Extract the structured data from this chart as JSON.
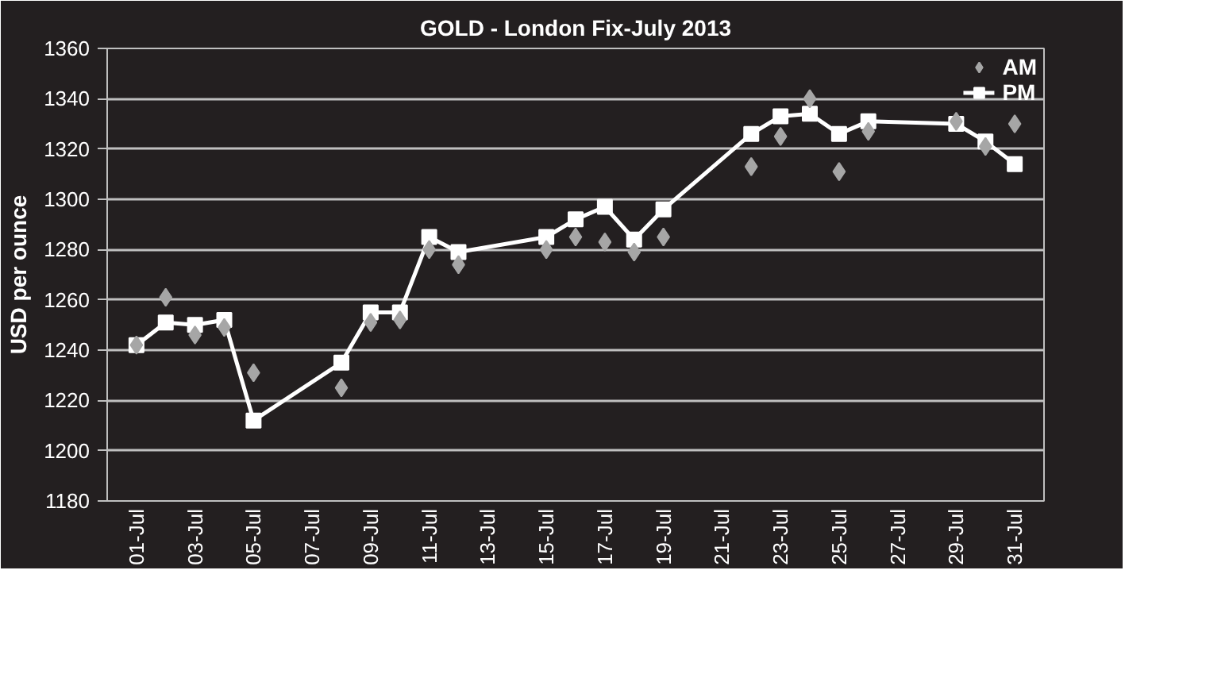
{
  "chart_data": {
    "type": "line",
    "title": "GOLD - London Fix-July 2013",
    "ylabel": "USD per ounce",
    "x": [
      "2013-07-01",
      "2013-07-02",
      "2013-07-03",
      "2013-07-04",
      "2013-07-05",
      "2013-07-08",
      "2013-07-09",
      "2013-07-10",
      "2013-07-11",
      "2013-07-12",
      "2013-07-15",
      "2013-07-16",
      "2013-07-17",
      "2013-07-18",
      "2013-07-19",
      "2013-07-22",
      "2013-07-23",
      "2013-07-24",
      "2013-07-25",
      "2013-07-26",
      "2013-07-29",
      "2013-07-30",
      "2013-07-31"
    ],
    "series": [
      {
        "name": "AM",
        "type": "scatter",
        "marker": "diamond",
        "color": "#a6a6a6",
        "values": [
          1242,
          1261,
          1246,
          1249,
          1231,
          1225,
          1251,
          1252,
          1280,
          1274,
          1280,
          1285,
          1283,
          1279,
          1285,
          1313,
          1325,
          1340,
          1311,
          1327,
          1331,
          1321,
          1330
        ]
      },
      {
        "name": "PM",
        "marker": "square",
        "color": "#ffffff",
        "values": [
          1242,
          1251,
          1250,
          1252,
          1212,
          1235,
          1255,
          1255,
          1285,
          1279,
          1285,
          1292,
          1297,
          1284,
          1296,
          1326,
          1333,
          1334,
          1326,
          1331,
          1330,
          1323,
          1314
        ]
      }
    ],
    "xlim": [
      "2013-06-30",
      "2013-08-01"
    ],
    "xticks": [
      {
        "value": "2013-07-01",
        "label": "01-Jul"
      },
      {
        "value": "2013-07-03",
        "label": "03-Jul"
      },
      {
        "value": "2013-07-05",
        "label": "05-Jul"
      },
      {
        "value": "2013-07-07",
        "label": "07-Jul"
      },
      {
        "value": "2013-07-09",
        "label": "09-Jul"
      },
      {
        "value": "2013-07-11",
        "label": "11-Jul"
      },
      {
        "value": "2013-07-13",
        "label": "13-Jul"
      },
      {
        "value": "2013-07-15",
        "label": "15-Jul"
      },
      {
        "value": "2013-07-17",
        "label": "17-Jul"
      },
      {
        "value": "2013-07-19",
        "label": "19-Jul"
      },
      {
        "value": "2013-07-21",
        "label": "21-Jul"
      },
      {
        "value": "2013-07-23",
        "label": "23-Jul"
      },
      {
        "value": "2013-07-25",
        "label": "25-Jul"
      },
      {
        "value": "2013-07-27",
        "label": "27-Jul"
      },
      {
        "value": "2013-07-29",
        "label": "29-Jul"
      },
      {
        "value": "2013-07-31",
        "label": "31-Jul"
      }
    ],
    "ylim": [
      1180,
      1360
    ],
    "yticks": [
      1180,
      1200,
      1220,
      1240,
      1260,
      1280,
      1300,
      1320,
      1340,
      1360
    ],
    "grid": "y",
    "legend": "top right"
  }
}
